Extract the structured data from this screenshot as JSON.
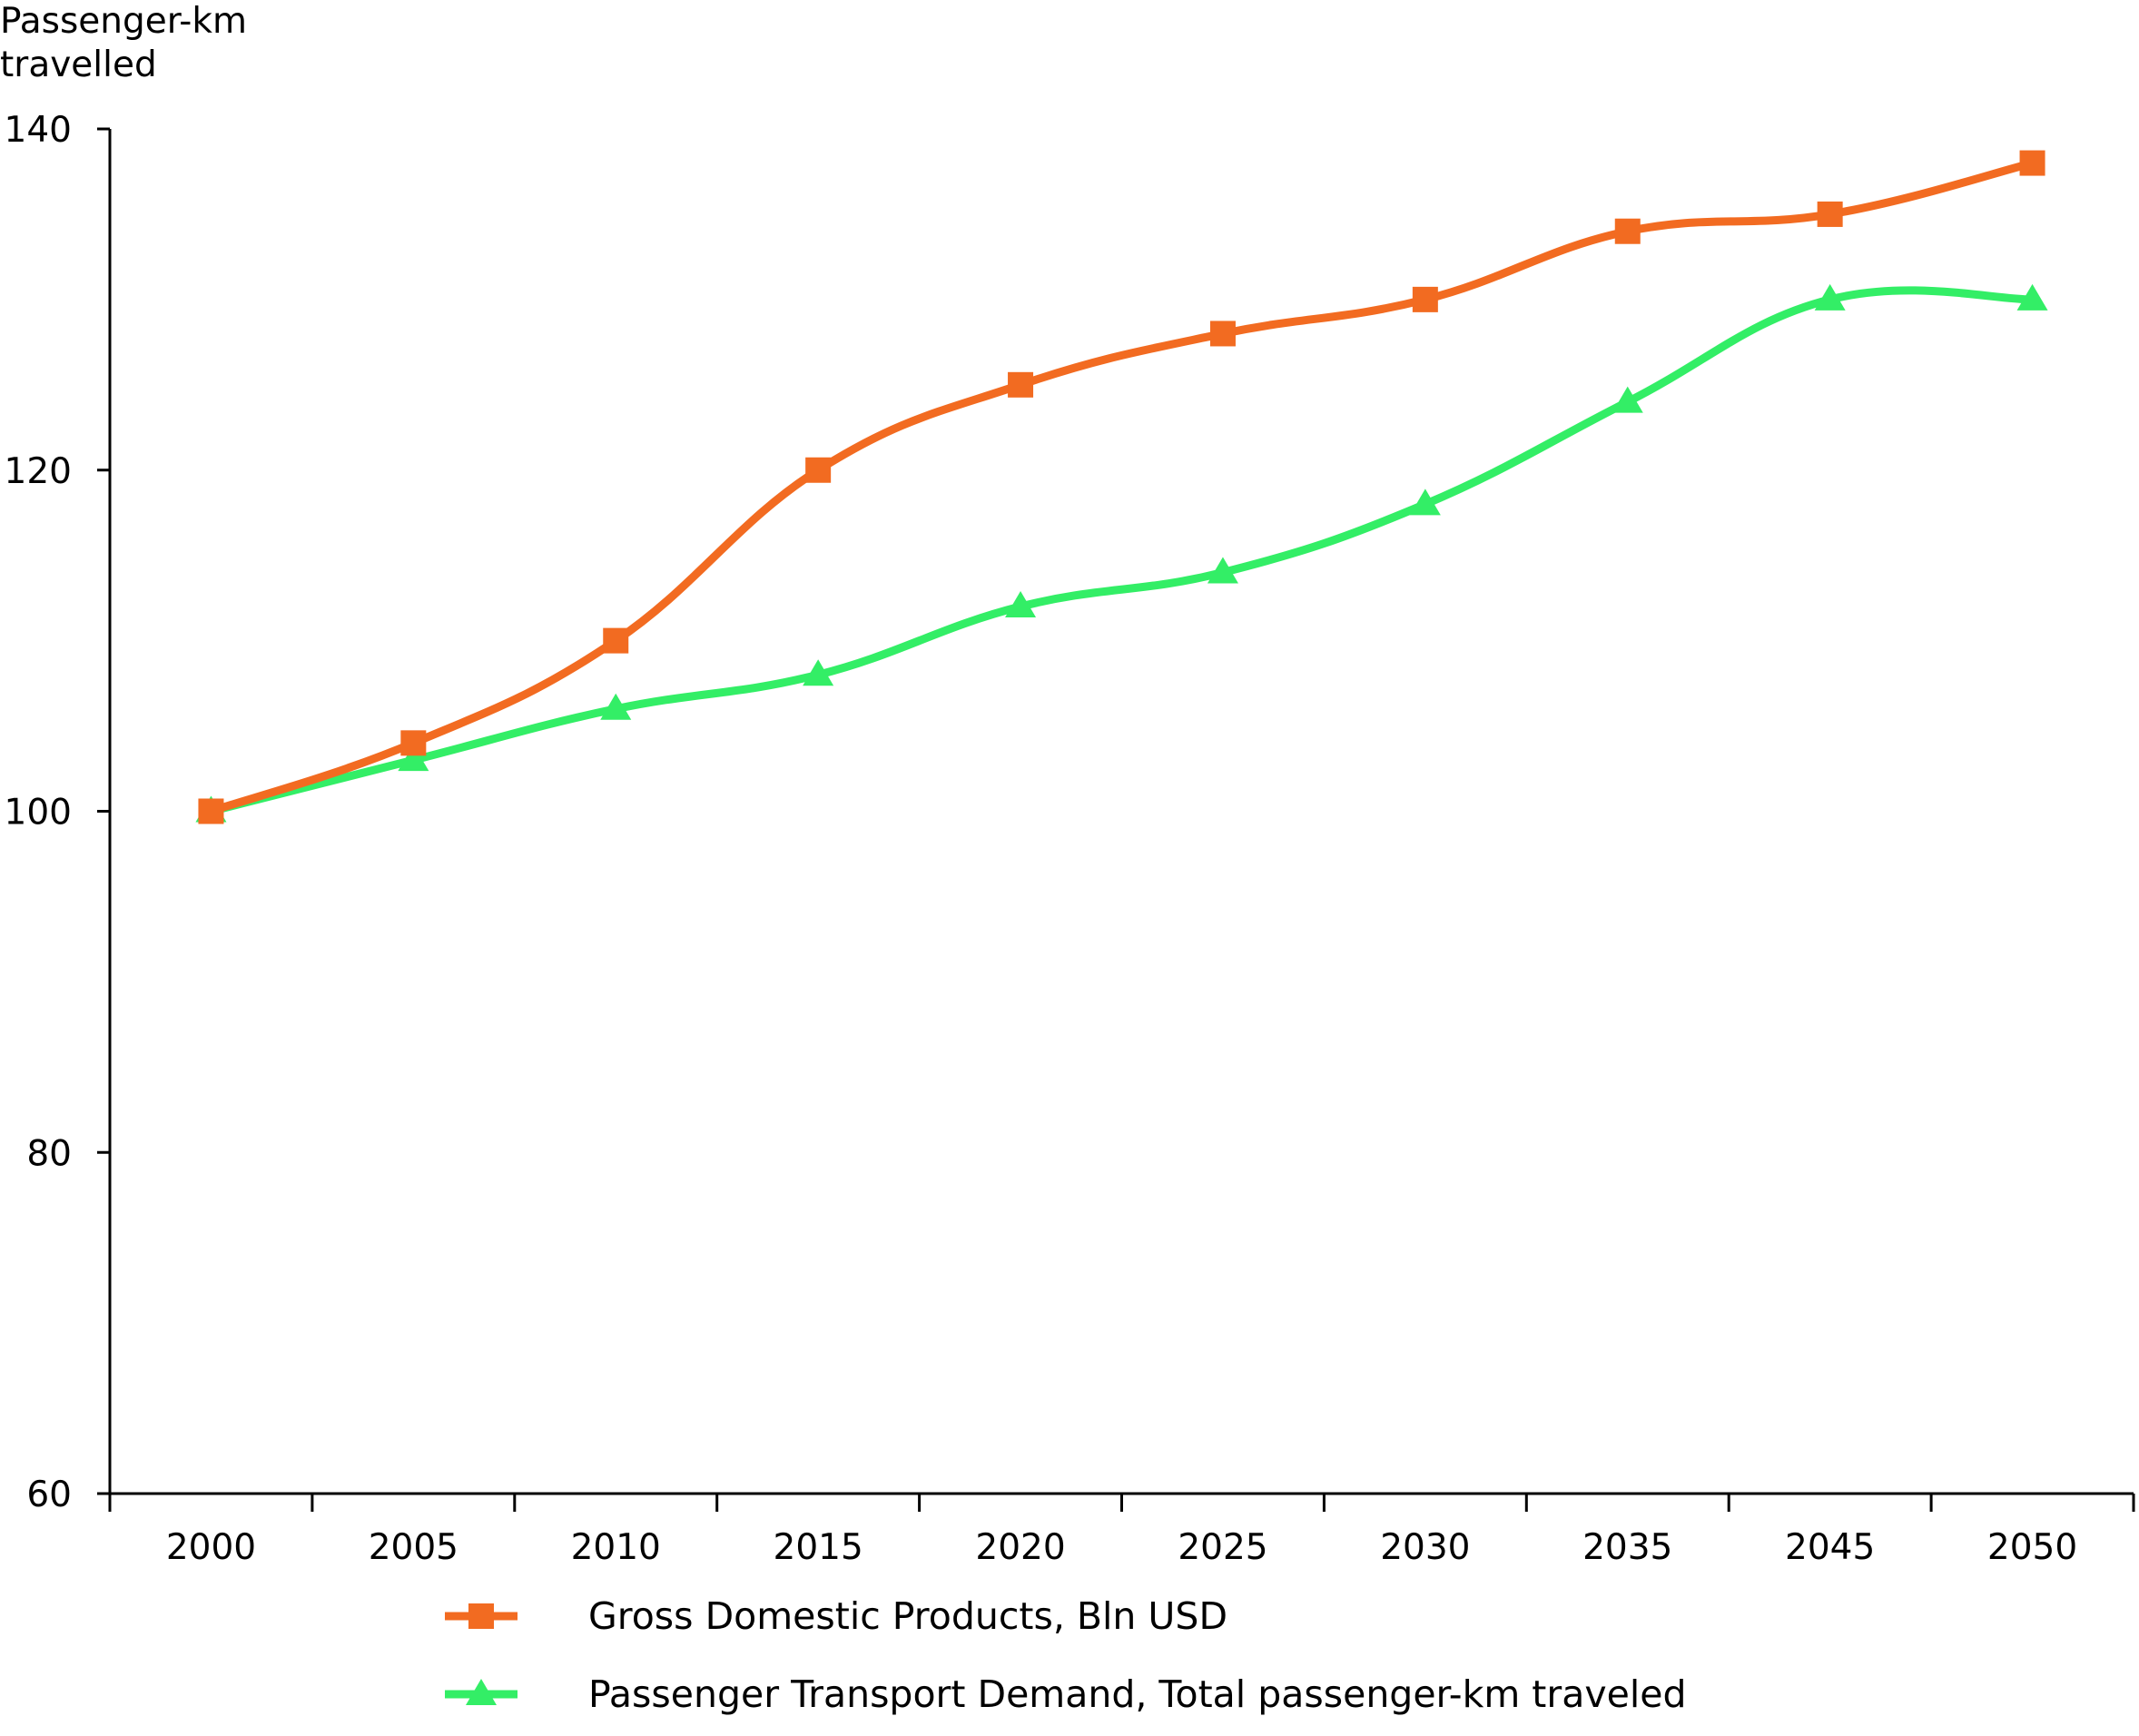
{
  "chart_data": {
    "type": "line",
    "title": "",
    "ylabel_lines": [
      "Passenger-km",
      "travelled"
    ],
    "xlabel": "",
    "categories": [
      "2000",
      "2005",
      "2010",
      "2015",
      "2020",
      "2025",
      "2030",
      "2035",
      "2045",
      "2050"
    ],
    "ylim": [
      60,
      140
    ],
    "yticks": [
      60,
      80,
      100,
      120,
      140
    ],
    "grid": false,
    "legend_position": "bottom",
    "series": [
      {
        "name": "Gross Domestic Products, Bln USD",
        "color": "#f26b21",
        "marker": "square",
        "values": [
          100,
          104,
          110,
          120,
          125,
          128,
          130,
          134,
          135,
          138
        ]
      },
      {
        "name": "Passenger Transport Demand, Total passenger-km traveled",
        "color": "#33ee66",
        "marker": "triangle",
        "values": [
          100,
          103,
          106,
          108,
          112,
          114,
          118,
          124,
          130,
          130
        ]
      }
    ]
  }
}
